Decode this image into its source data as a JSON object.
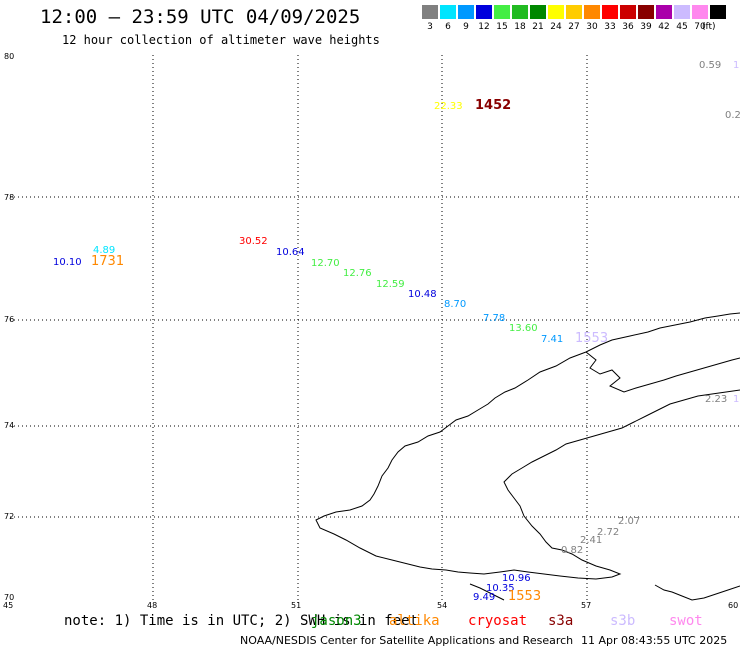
{
  "header": {
    "title": "12:00 – 23:59 UTC 04/09/2025",
    "subtitle": "12 hour collection of altimeter wave heights"
  },
  "legend": {
    "unit": "(ft)",
    "levels": [
      {
        "label": "3",
        "color": "#808080"
      },
      {
        "label": "6",
        "color": "#00e5ff"
      },
      {
        "label": "9",
        "color": "#0099ff"
      },
      {
        "label": "12",
        "color": "#0000dd"
      },
      {
        "label": "15",
        "color": "#44ee44"
      },
      {
        "label": "18",
        "color": "#22bb22"
      },
      {
        "label": "21",
        "color": "#008800"
      },
      {
        "label": "24",
        "color": "#ffff00"
      },
      {
        "label": "27",
        "color": "#ffcc00"
      },
      {
        "label": "30",
        "color": "#ff8800"
      },
      {
        "label": "33",
        "color": "#ff0000"
      },
      {
        "label": "36",
        "color": "#cc0000"
      },
      {
        "label": "39",
        "color": "#880000"
      },
      {
        "label": "42",
        "color": "#aa00aa"
      },
      {
        "label": "45",
        "color": "#ccbbff"
      },
      {
        "label": "70",
        "color": "#ff88ee"
      },
      {
        "label": "",
        "color": "#000000"
      }
    ]
  },
  "map": {
    "lon_ticks": [
      "45",
      "48",
      "51",
      "54",
      "57",
      "60"
    ],
    "lat_ticks": [
      "80",
      "78",
      "76",
      "74",
      "72",
      "70"
    ],
    "wave_labels": [
      {
        "text": "0.59",
        "color": "#808080"
      },
      {
        "text": "1",
        "color": "#ccbbff"
      },
      {
        "text": "0.2",
        "color": "#808080"
      },
      {
        "text": "22.33",
        "color": "#ffff00"
      },
      {
        "text": "4.89",
        "color": "#00e5ff"
      },
      {
        "text": "10.10",
        "color": "#0000dd"
      },
      {
        "text": "30.52",
        "color": "#ff0000"
      },
      {
        "text": "10.64",
        "color": "#0000dd"
      },
      {
        "text": "12.70",
        "color": "#44ee44"
      },
      {
        "text": "12.76",
        "color": "#44ee44"
      },
      {
        "text": "12.59",
        "color": "#44ee44"
      },
      {
        "text": "10.48",
        "color": "#0000dd"
      },
      {
        "text": "8.70",
        "color": "#0099ff"
      },
      {
        "text": "7.78",
        "color": "#0099ff"
      },
      {
        "text": "13.60",
        "color": "#44ee44"
      },
      {
        "text": "7.41",
        "color": "#0099ff"
      },
      {
        "text": "2.23",
        "color": "#808080"
      },
      {
        "text": "1",
        "color": "#ccbbff"
      },
      {
        "text": "2.07",
        "color": "#808080"
      },
      {
        "text": "2.72",
        "color": "#808080"
      },
      {
        "text": "2.41",
        "color": "#808080"
      },
      {
        "text": "0.82",
        "color": "#808080"
      },
      {
        "text": "10.96",
        "color": "#0000dd"
      },
      {
        "text": "10.35",
        "color": "#0000dd"
      },
      {
        "text": "9.49",
        "color": "#0000dd"
      }
    ],
    "time_labels": [
      {
        "text": "1452",
        "color": "#880000"
      },
      {
        "text": "1731",
        "color": "#ff8800"
      },
      {
        "text": "1553",
        "color": "#ccbbff"
      },
      {
        "text": "1553",
        "color": "#ff8800"
      }
    ]
  },
  "footer": {
    "note": "note: 1) Time is in UTC; 2) SWH is in feet",
    "satellites": [
      {
        "name": "jason3",
        "color": "#008800"
      },
      {
        "name": "altika",
        "color": "#ff8800"
      },
      {
        "name": "cryosat",
        "color": "#ff0000"
      },
      {
        "name": "s3a",
        "color": "#880000"
      },
      {
        "name": "s3b",
        "color": "#ccbbff"
      },
      {
        "name": "swot",
        "color": "#ff88ee"
      }
    ],
    "credit": "NOAA/NESDIS Center for Satellite Applications and Research",
    "generated": "11 Apr 08:43:55 UTC 2025"
  }
}
